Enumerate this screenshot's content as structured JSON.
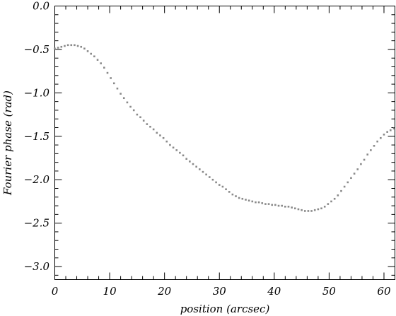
{
  "chart_data": {
    "type": "scatter",
    "title": "",
    "xlabel": "position (arcsec)",
    "ylabel": "Fourier phase (rad)",
    "xlim": [
      0,
      62
    ],
    "ylim": [
      -3.15,
      0.0
    ],
    "x_ticks": [
      0,
      10,
      20,
      30,
      40,
      50,
      60
    ],
    "x_tick_labels": [
      "0",
      "10",
      "20",
      "30",
      "40",
      "50",
      "60"
    ],
    "y_ticks": [
      0.0,
      -0.5,
      -1.0,
      -1.5,
      -2.0,
      -2.5,
      -3.0
    ],
    "y_tick_labels": [
      "0.0",
      "−0.5",
      "−1.0",
      "−1.5",
      "−2.0",
      "−2.5",
      "−3.0"
    ],
    "grid": false,
    "legend": "none",
    "marker_color": "#8a8a8a",
    "series": [
      {
        "x": [
          0.0,
          0.6,
          1.2,
          1.8,
          2.4,
          3.0,
          3.6,
          4.2,
          4.8,
          5.4,
          6.0,
          6.6,
          7.2,
          7.8,
          8.4,
          9.0,
          9.6,
          10.2,
          10.8,
          11.4,
          12.0,
          12.6,
          13.2,
          13.8,
          14.4,
          15.0,
          15.6,
          16.2,
          16.8,
          17.4,
          18.0,
          18.6,
          19.2,
          19.8,
          20.4,
          21.0,
          21.6,
          22.2,
          22.8,
          23.4,
          24.0,
          24.6,
          25.2,
          25.8,
          26.4,
          27.0,
          27.6,
          28.2,
          28.8,
          29.4,
          30.0,
          30.6,
          31.2,
          31.8,
          32.4,
          33.0,
          33.6,
          34.2,
          34.8,
          35.4,
          36.0,
          36.6,
          37.2,
          37.8,
          38.4,
          39.0,
          39.6,
          40.2,
          40.8,
          41.4,
          42.0,
          42.6,
          43.2,
          43.8,
          44.4,
          45.0,
          45.6,
          46.2,
          46.8,
          47.4,
          48.0,
          48.6,
          49.2,
          49.8,
          50.4,
          51.0,
          51.6,
          52.2,
          52.8,
          53.4,
          54.0,
          54.6,
          55.2,
          55.8,
          56.4,
          57.0,
          57.6,
          58.2,
          58.8,
          59.4,
          60.0,
          60.6,
          61.2,
          61.8
        ],
        "y": [
          -0.49,
          -0.48,
          -0.47,
          -0.46,
          -0.45,
          -0.45,
          -0.45,
          -0.46,
          -0.47,
          -0.49,
          -0.52,
          -0.55,
          -0.58,
          -0.62,
          -0.66,
          -0.71,
          -0.77,
          -0.83,
          -0.89,
          -0.95,
          -1.01,
          -1.06,
          -1.11,
          -1.16,
          -1.2,
          -1.25,
          -1.28,
          -1.32,
          -1.36,
          -1.39,
          -1.42,
          -1.46,
          -1.49,
          -1.52,
          -1.56,
          -1.6,
          -1.63,
          -1.66,
          -1.69,
          -1.72,
          -1.76,
          -1.79,
          -1.82,
          -1.85,
          -1.88,
          -1.91,
          -1.94,
          -1.97,
          -2.0,
          -2.03,
          -2.06,
          -2.08,
          -2.11,
          -2.14,
          -2.17,
          -2.19,
          -2.21,
          -2.22,
          -2.23,
          -2.24,
          -2.25,
          -2.26,
          -2.26,
          -2.27,
          -2.28,
          -2.28,
          -2.29,
          -2.29,
          -2.3,
          -2.3,
          -2.31,
          -2.31,
          -2.32,
          -2.33,
          -2.34,
          -2.35,
          -2.36,
          -2.36,
          -2.36,
          -2.35,
          -2.34,
          -2.33,
          -2.31,
          -2.28,
          -2.25,
          -2.22,
          -2.18,
          -2.13,
          -2.08,
          -2.03,
          -1.98,
          -1.93,
          -1.88,
          -1.82,
          -1.77,
          -1.71,
          -1.66,
          -1.61,
          -1.56,
          -1.52,
          -1.48,
          -1.45,
          -1.43,
          -1.41
        ]
      }
    ]
  }
}
